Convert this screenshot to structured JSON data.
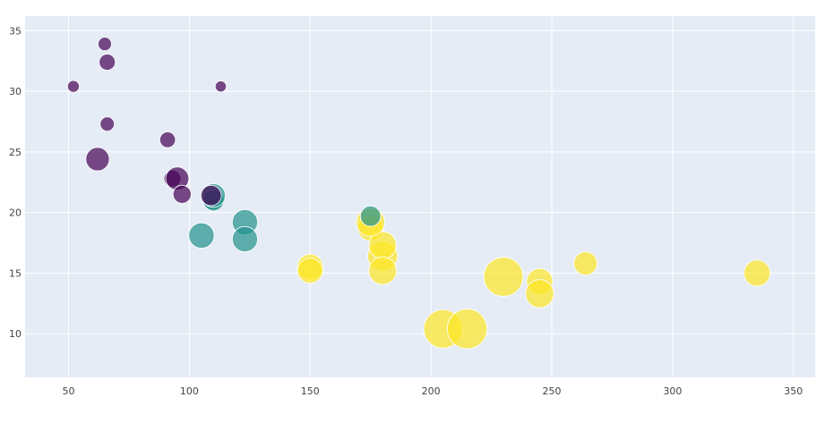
{
  "chart_data": {
    "type": "scatter",
    "title": "",
    "xlabel": "",
    "ylabel": "",
    "xlim": [
      32,
      359
    ],
    "ylim": [
      6.4,
      36.2
    ],
    "x_ticks": [
      50,
      100,
      150,
      200,
      250,
      300,
      350
    ],
    "y_ticks": [
      10,
      15,
      20,
      25,
      30,
      35
    ],
    "grid": true,
    "marker_opacity": 0.7,
    "marker_line_color": "#ffffff",
    "plot_bgcolor": "#e5ecf6",
    "grid_color": "#ffffff",
    "color_scale": "viridis",
    "color_levels": {
      "4": "#440154",
      "6": "#21918c",
      "8": "#fde725"
    },
    "points": [
      {
        "x": 110,
        "y": 21,
        "size": 2.62,
        "color": 6
      },
      {
        "x": 110,
        "y": 21,
        "size": 2.875,
        "color": 6
      },
      {
        "x": 93,
        "y": 22.8,
        "size": 2.32,
        "color": 4
      },
      {
        "x": 110,
        "y": 21.4,
        "size": 3.215,
        "color": 6
      },
      {
        "x": 175,
        "y": 18.7,
        "size": 3.44,
        "color": 8
      },
      {
        "x": 105,
        "y": 18.1,
        "size": 3.46,
        "color": 6
      },
      {
        "x": 245,
        "y": 14.3,
        "size": 3.57,
        "color": 8
      },
      {
        "x": 62,
        "y": 24.4,
        "size": 3.19,
        "color": 4
      },
      {
        "x": 95,
        "y": 22.8,
        "size": 3.15,
        "color": 4
      },
      {
        "x": 123,
        "y": 19.2,
        "size": 3.44,
        "color": 6
      },
      {
        "x": 123,
        "y": 17.8,
        "size": 3.44,
        "color": 6
      },
      {
        "x": 180,
        "y": 16.4,
        "size": 4.07,
        "color": 8
      },
      {
        "x": 180,
        "y": 17.3,
        "size": 3.73,
        "color": 8
      },
      {
        "x": 180,
        "y": 15.2,
        "size": 3.78,
        "color": 8
      },
      {
        "x": 205,
        "y": 10.4,
        "size": 5.25,
        "color": 8
      },
      {
        "x": 215,
        "y": 10.4,
        "size": 5.424,
        "color": 8
      },
      {
        "x": 230,
        "y": 14.7,
        "size": 5.345,
        "color": 8
      },
      {
        "x": 66,
        "y": 32.4,
        "size": 2.2,
        "color": 4
      },
      {
        "x": 52,
        "y": 30.4,
        "size": 1.615,
        "color": 4
      },
      {
        "x": 65,
        "y": 33.9,
        "size": 1.835,
        "color": 4
      },
      {
        "x": 97,
        "y": 21.5,
        "size": 2.465,
        "color": 4
      },
      {
        "x": 150,
        "y": 15.5,
        "size": 3.52,
        "color": 8
      },
      {
        "x": 150,
        "y": 15.2,
        "size": 3.435,
        "color": 8
      },
      {
        "x": 245,
        "y": 13.3,
        "size": 3.84,
        "color": 8
      },
      {
        "x": 175,
        "y": 19.2,
        "size": 3.845,
        "color": 8
      },
      {
        "x": 66,
        "y": 27.3,
        "size": 1.935,
        "color": 4
      },
      {
        "x": 91,
        "y": 26,
        "size": 2.14,
        "color": 4
      },
      {
        "x": 113,
        "y": 30.4,
        "size": 1.513,
        "color": 4
      },
      {
        "x": 264,
        "y": 15.8,
        "size": 3.17,
        "color": 8
      },
      {
        "x": 175,
        "y": 19.7,
        "size": 2.77,
        "color": 6
      },
      {
        "x": 335,
        "y": 15,
        "size": 3.57,
        "color": 8
      },
      {
        "x": 109,
        "y": 21.4,
        "size": 2.78,
        "color": 4
      }
    ]
  }
}
